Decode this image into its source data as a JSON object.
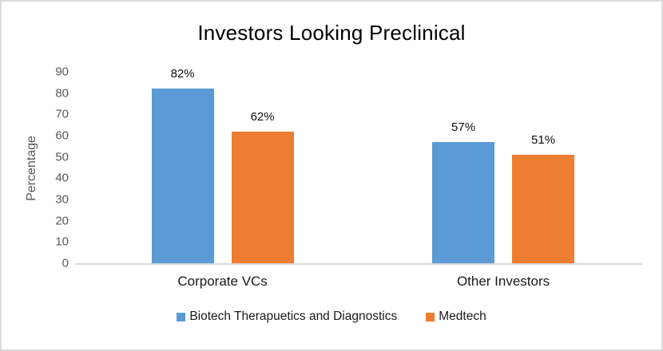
{
  "chart_data": {
    "type": "bar",
    "title": "Investors Looking Preclinical",
    "categories": [
      "Corporate VCs",
      "Other Investors"
    ],
    "series": [
      {
        "name": "Biotech Therapuetics and Diagnostics",
        "color": "#5B9BD5",
        "values": [
          82,
          57
        ],
        "data_labels": [
          "82%",
          "57%"
        ]
      },
      {
        "name": "Medtech",
        "color": "#ED7D31",
        "values": [
          62,
          51
        ],
        "data_labels": [
          "62%",
          "51%"
        ]
      }
    ],
    "xlabel": "",
    "ylabel": "Percentage",
    "ylim": [
      0,
      90
    ],
    "yticks": [
      0,
      10,
      20,
      30,
      40,
      50,
      60,
      70,
      80,
      90
    ],
    "grid": false,
    "legend_position": "bottom",
    "colors": {
      "axis_line": "#d9d9d9",
      "tick_label": "#595959",
      "category_label": "#1a1a1a",
      "data_label": "#0d0d0d",
      "title": "#000000",
      "frame_border": "#dcdcdc",
      "background": "#ffffff"
    }
  }
}
